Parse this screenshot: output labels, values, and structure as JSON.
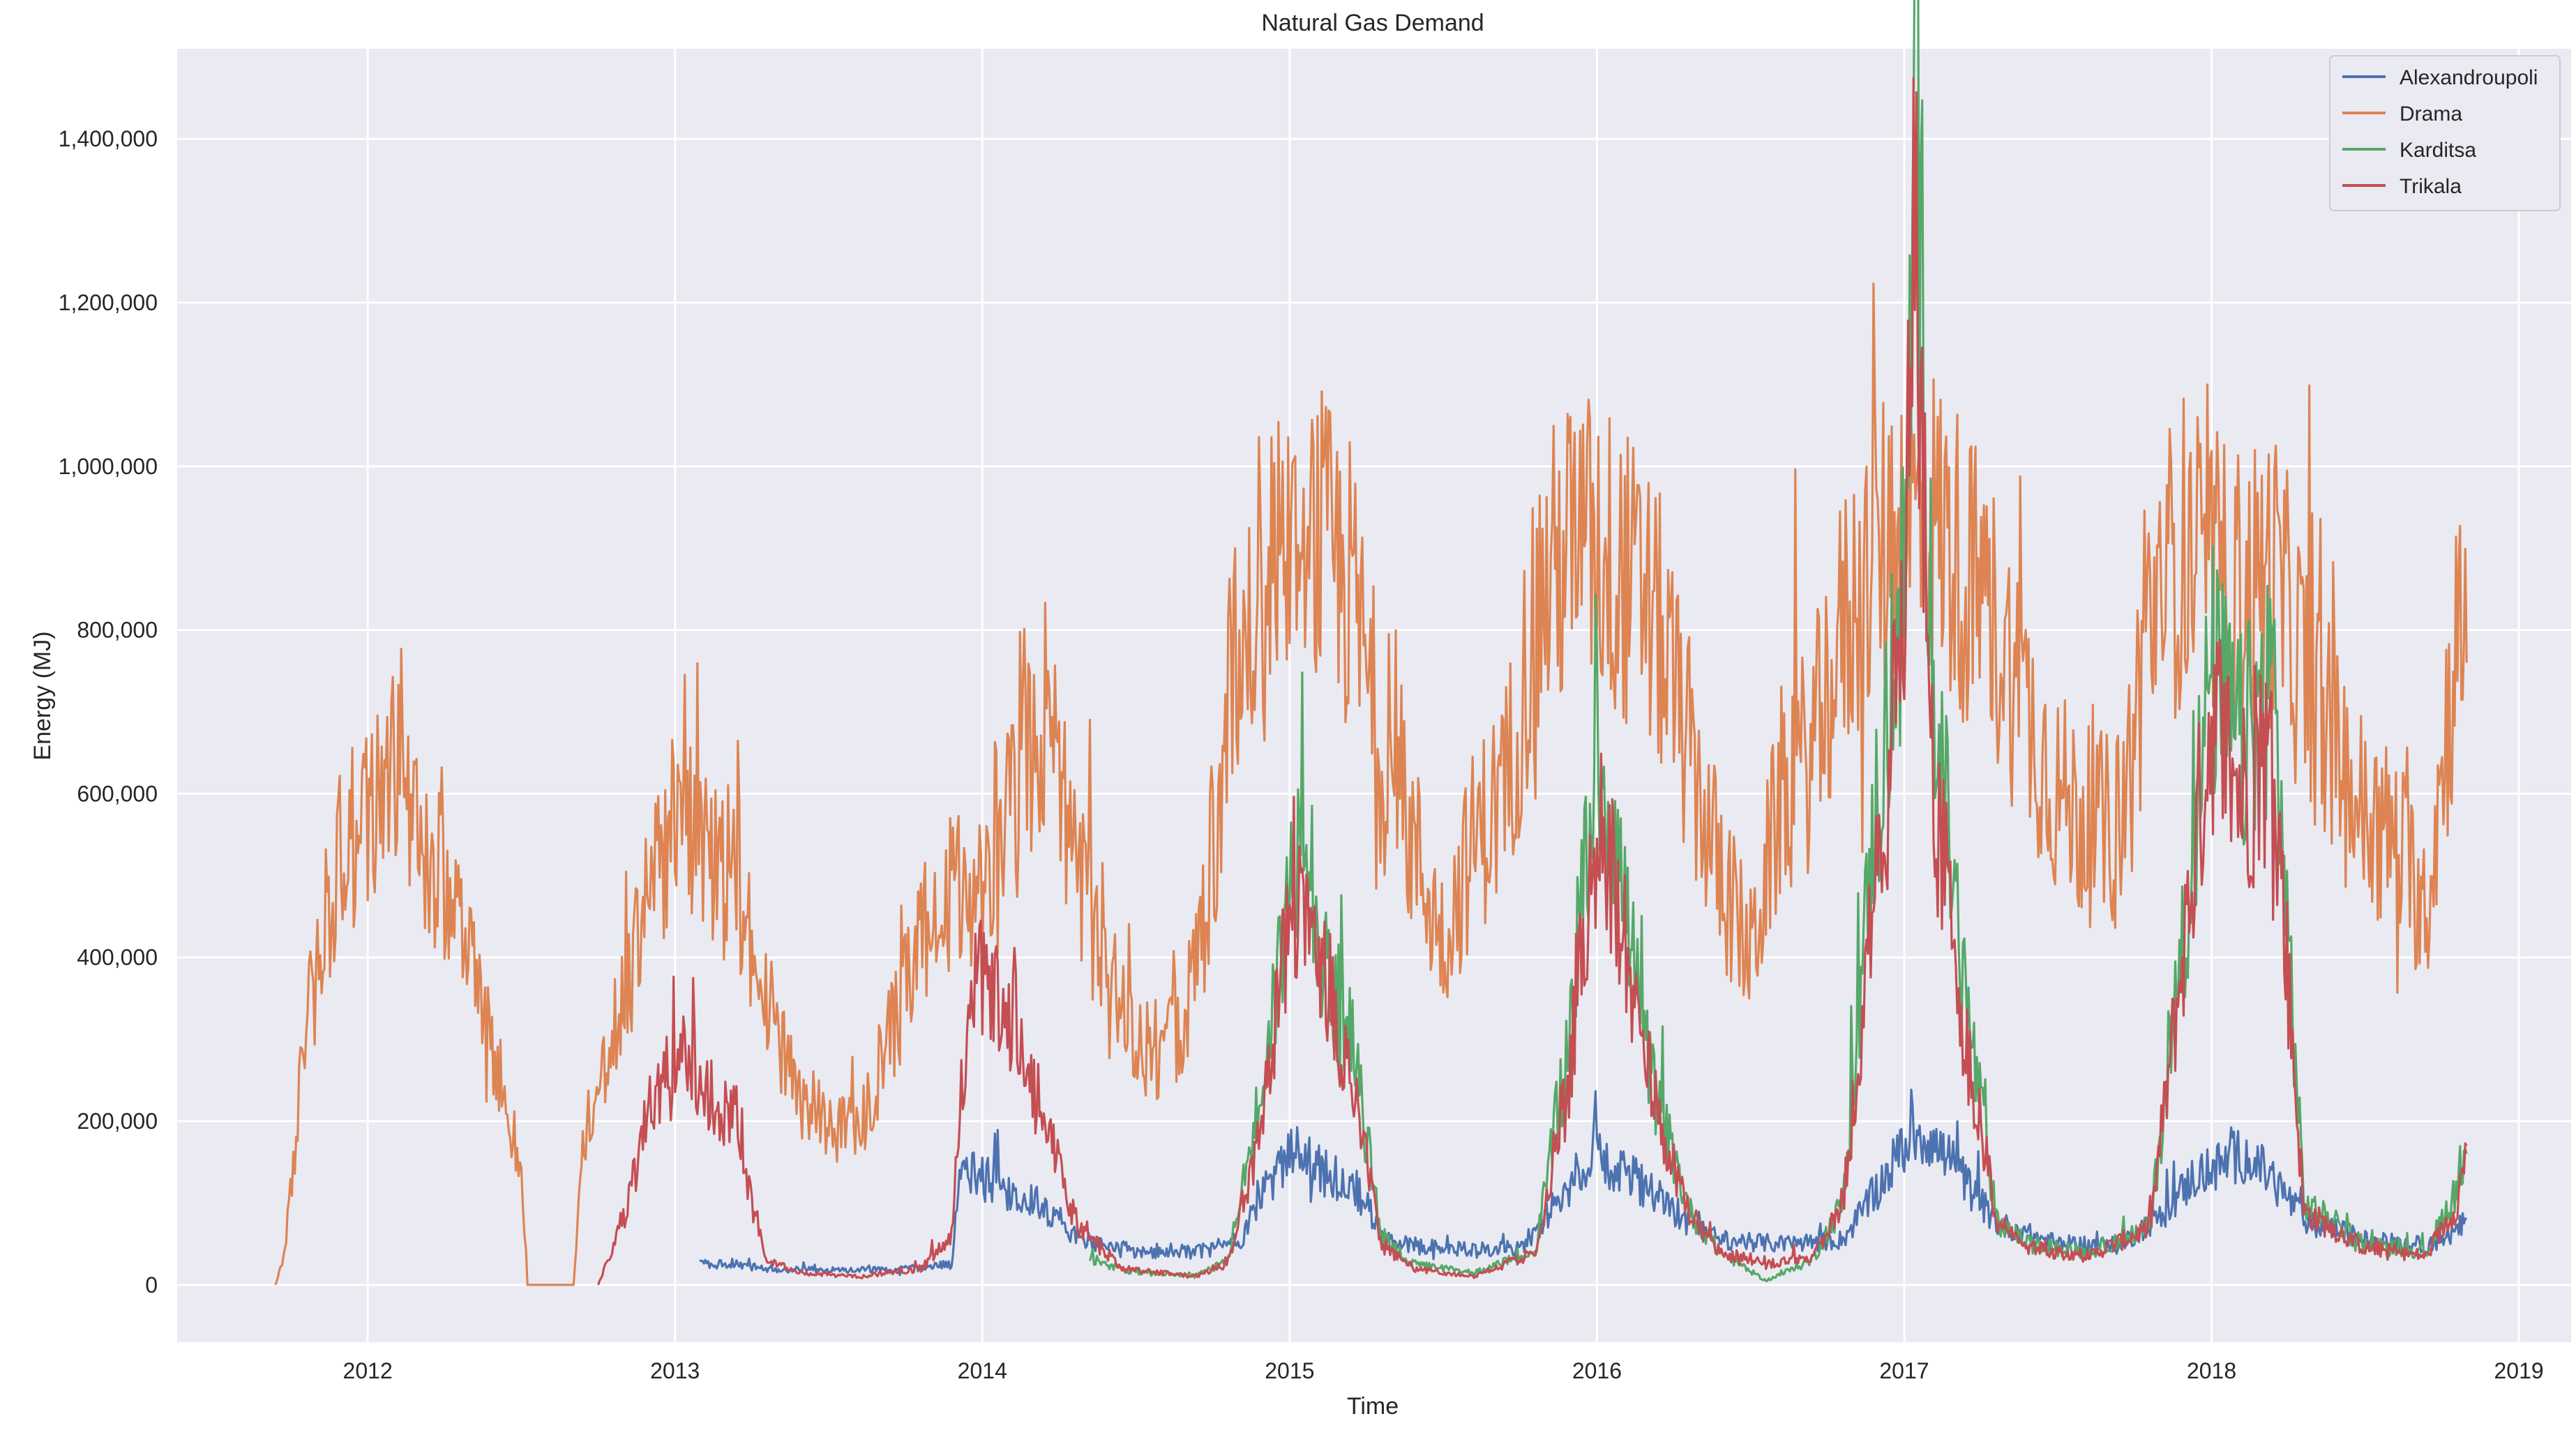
{
  "chart_data": {
    "type": "line",
    "title": "Natural Gas Demand",
    "xlabel": "Time",
    "ylabel": "Energy (MJ)",
    "xlim": [
      2011.38,
      2019.17
    ],
    "ylim": [
      -70000,
      1510000
    ],
    "x_ticks": [
      {
        "value": 2012,
        "label": "2012"
      },
      {
        "value": 2013,
        "label": "2013"
      },
      {
        "value": 2014,
        "label": "2014"
      },
      {
        "value": 2015,
        "label": "2015"
      },
      {
        "value": 2016,
        "label": "2016"
      },
      {
        "value": 2017,
        "label": "2017"
      },
      {
        "value": 2018,
        "label": "2018"
      },
      {
        "value": 2019,
        "label": "2019"
      }
    ],
    "y_ticks": [
      {
        "value": 0,
        "label": "0"
      },
      {
        "value": 200000,
        "label": "200,000"
      },
      {
        "value": 400000,
        "label": "400,000"
      },
      {
        "value": 600000,
        "label": "600,000"
      },
      {
        "value": 800000,
        "label": "800,000"
      },
      {
        "value": 1000000,
        "label": "1,000,000"
      },
      {
        "value": 1200000,
        "label": "1,200,000"
      },
      {
        "value": 1400000,
        "label": "1,400,000"
      }
    ],
    "grid": true,
    "legend_position": "top-right",
    "series": [
      {
        "name": "Alexandroupoli",
        "color": "#4c72b0",
        "x": [
          2013.08,
          2013.2,
          2013.3,
          2013.5,
          2013.7,
          2013.9,
          2013.93,
          2014.0,
          2014.1,
          2014.2,
          2014.3,
          2014.4,
          2014.5,
          2014.7,
          2014.85,
          2014.9,
          2015.0,
          2015.02,
          2015.1,
          2015.2,
          2015.25,
          2015.3,
          2015.4,
          2015.6,
          2015.75,
          2015.85,
          2015.95,
          2016.0,
          2016.1,
          2016.2,
          2016.3,
          2016.4,
          2016.6,
          2016.8,
          2016.9,
          2017.0,
          2017.05,
          2017.15,
          2017.3,
          2017.5,
          2017.7,
          2017.85,
          2017.95,
          2018.0,
          2018.1,
          2018.2,
          2018.3,
          2018.5,
          2018.7,
          2018.8,
          2018.83
        ],
        "values": [
          25000,
          25000,
          20000,
          18000,
          18000,
          25000,
          140000,
          130000,
          115000,
          95000,
          60000,
          45000,
          42000,
          40000,
          55000,
          110000,
          150000,
          175000,
          140000,
          125000,
          100000,
          55000,
          48000,
          42000,
          45000,
          90000,
          145000,
          160000,
          135000,
          110000,
          75000,
          55000,
          50000,
          55000,
          110000,
          170000,
          190000,
          150000,
          75000,
          50000,
          48000,
          90000,
          135000,
          140000,
          160000,
          130000,
          80000,
          55000,
          48000,
          65000,
          80000
        ]
      },
      {
        "name": "Drama",
        "color": "#dd8452",
        "x": [
          2011.7,
          2011.73,
          2011.8,
          2011.9,
          2012.0,
          2012.1,
          2012.2,
          2012.3,
          2012.4,
          2012.5,
          2012.52,
          2012.67,
          2012.7,
          2012.8,
          2012.9,
          2013.0,
          2013.1,
          2013.2,
          2013.3,
          2013.4,
          2013.5,
          2013.6,
          2013.7,
          2013.8,
          2013.9,
          2014.0,
          2014.1,
          2014.2,
          2014.3,
          2014.4,
          2014.5,
          2014.6,
          2014.7,
          2014.8,
          2014.9,
          2015.0,
          2015.1,
          2015.2,
          2015.3,
          2015.4,
          2015.5,
          2015.6,
          2015.7,
          2015.8,
          2015.9,
          2016.0,
          2016.1,
          2016.2,
          2016.3,
          2016.4,
          2016.5,
          2016.6,
          2016.7,
          2016.8,
          2016.9,
          2017.0,
          2017.1,
          2017.2,
          2017.3,
          2017.4,
          2017.5,
          2017.6,
          2017.7,
          2017.8,
          2017.9,
          2018.0,
          2018.1,
          2018.2,
          2018.3,
          2018.4,
          2018.5,
          2018.6,
          2018.7,
          2018.8,
          2018.83
        ],
        "values": [
          0,
          40000,
          320000,
          520000,
          560000,
          660000,
          540000,
          440000,
          290000,
          150000,
          0,
          0,
          180000,
          300000,
          450000,
          560000,
          520000,
          500000,
          350000,
          240000,
          190000,
          190000,
          300000,
          420000,
          470000,
          480000,
          650000,
          700000,
          550000,
          360000,
          300000,
          280000,
          380000,
          700000,
          870000,
          940000,
          900000,
          850000,
          650000,
          540000,
          420000,
          540000,
          600000,
          820000,
          900000,
          900000,
          860000,
          800000,
          650000,
          500000,
          400000,
          600000,
          650000,
          800000,
          880000,
          950000,
          930000,
          870000,
          800000,
          700000,
          600000,
          560000,
          550000,
          820000,
          900000,
          860000,
          840000,
          870000,
          750000,
          650000,
          570000,
          540000,
          460000,
          800000,
          760000
        ]
      },
      {
        "name": "Karditsa",
        "color": "#55a868",
        "x": [
          2014.35,
          2014.5,
          2014.7,
          2014.8,
          2014.9,
          2015.0,
          2015.05,
          2015.1,
          2015.2,
          2015.3,
          2015.4,
          2015.6,
          2015.8,
          2015.9,
          2016.0,
          2016.05,
          2016.15,
          2016.2,
          2016.3,
          2016.4,
          2016.55,
          2016.7,
          2016.8,
          2016.9,
          2017.0,
          2017.04,
          2017.1,
          2017.2,
          2017.3,
          2017.4,
          2017.6,
          2017.8,
          2017.9,
          2018.0,
          2018.1,
          2018.2,
          2018.3,
          2018.5,
          2018.7,
          2018.8,
          2018.83
        ],
        "values": [
          30000,
          15000,
          12000,
          30000,
          220000,
          480000,
          620000,
          400000,
          300000,
          60000,
          25000,
          15000,
          40000,
          280000,
          650000,
          580000,
          300000,
          220000,
          90000,
          40000,
          5000,
          30000,
          100000,
          550000,
          850000,
          1440000,
          700000,
          350000,
          80000,
          50000,
          40000,
          70000,
          400000,
          750000,
          650000,
          750000,
          100000,
          50000,
          40000,
          120000,
          160000
        ]
      },
      {
        "name": "Trikala",
        "color": "#c44e52",
        "x": [
          2012.75,
          2012.85,
          2012.9,
          2013.0,
          2013.1,
          2013.2,
          2013.25,
          2013.3,
          2013.4,
          2013.6,
          2013.8,
          2013.9,
          2013.95,
          2014.0,
          2014.1,
          2014.2,
          2014.3,
          2014.45,
          2014.7,
          2014.8,
          2014.9,
          2015.0,
          2015.05,
          2015.1,
          2015.2,
          2015.3,
          2015.4,
          2015.6,
          2015.8,
          2015.9,
          2016.0,
          2016.05,
          2016.15,
          2016.2,
          2016.3,
          2016.4,
          2016.55,
          2016.7,
          2016.8,
          2016.9,
          2017.0,
          2017.03,
          2017.1,
          2017.2,
          2017.3,
          2017.4,
          2017.6,
          2017.8,
          2017.9,
          2018.0,
          2018.1,
          2018.2,
          2018.3,
          2018.5,
          2018.7,
          2018.8,
          2018.83
        ],
        "values": [
          0,
          100000,
          200000,
          280000,
          240000,
          200000,
          100000,
          30000,
          15000,
          10000,
          20000,
          60000,
          320000,
          380000,
          330000,
          200000,
          80000,
          20000,
          10000,
          30000,
          180000,
          450000,
          500000,
          400000,
          250000,
          50000,
          20000,
          10000,
          40000,
          230000,
          550000,
          500000,
          300000,
          200000,
          90000,
          40000,
          25000,
          35000,
          100000,
          450000,
          800000,
          1290000,
          600000,
          300000,
          80000,
          45000,
          35000,
          70000,
          380000,
          700000,
          600000,
          650000,
          90000,
          45000,
          35000,
          100000,
          170000
        ]
      }
    ]
  }
}
